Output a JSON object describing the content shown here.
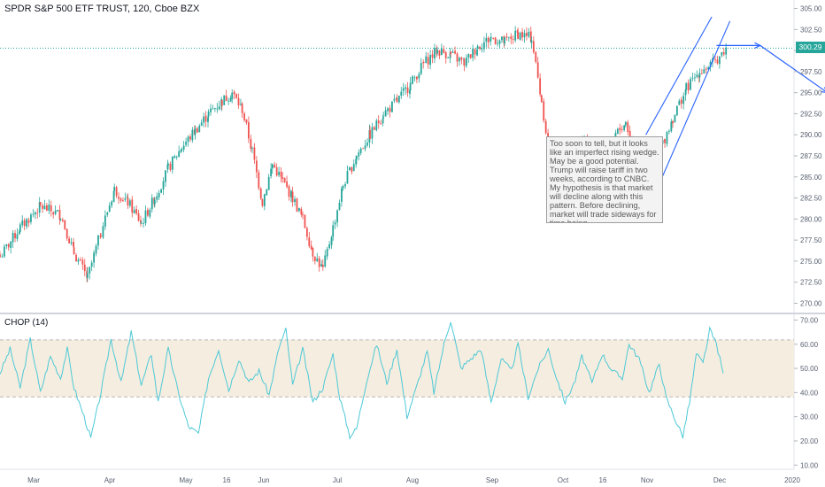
{
  "header": {
    "symbol_title": "SPDR S&P 500 ETF TRUST, 120, Cboe BZX"
  },
  "indicator": {
    "title": "CHOP (14)"
  },
  "annotation": {
    "text": "Too soon to tell, but it looks like an imperfect rising wedge. May be a good potential. Trump will raise tariff in two weeks, according to CNBC. My hypothesis is that market will decline along with this pattern. Before declining, market will trade sideways for time being."
  },
  "last_price": {
    "label": "300.29",
    "value": 300.29
  },
  "colors": {
    "up": "#26a69a",
    "down": "#ef5350",
    "chop_line": "#4dc9d6",
    "chop_band": "#f5ede0",
    "drawing": "#2962ff",
    "last_price_line": "#26a69a"
  },
  "chart_data": [
    {
      "type": "candlestick",
      "title": "SPDR S&P 500 ETF TRUST, 120, Cboe BZX",
      "ylim": [
        269,
        306
      ],
      "y_ticks": [
        "305.00",
        "302.50",
        "300.00",
        "297.50",
        "295.00",
        "292.50",
        "290.00",
        "287.50",
        "285.00",
        "282.50",
        "280.00",
        "277.50",
        "275.00",
        "272.50",
        "270.00"
      ],
      "x_ticks": [
        "Mar",
        "Apr",
        "May",
        "16",
        "Jun",
        "Jul",
        "Aug",
        "Sep",
        "Oct",
        "16",
        "Nov",
        "Dec",
        "2020"
      ],
      "close_path": [
        [
          0,
          275.5
        ],
        [
          3,
          279
        ],
        [
          6,
          281.5
        ],
        [
          9,
          280.5
        ],
        [
          11,
          276
        ],
        [
          13,
          273
        ],
        [
          15,
          278.5
        ],
        [
          17,
          283.5
        ],
        [
          19,
          282
        ],
        [
          21,
          279.5
        ],
        [
          23,
          282.5
        ],
        [
          25,
          286
        ],
        [
          27,
          288.5
        ],
        [
          29,
          290.5
        ],
        [
          31,
          292.5
        ],
        [
          33,
          294
        ],
        [
          34.5,
          295
        ],
        [
          36,
          293
        ],
        [
          37.5,
          288
        ],
        [
          39,
          282
        ],
        [
          40.5,
          286.5
        ],
        [
          42,
          284.5
        ],
        [
          43.5,
          282.5
        ],
        [
          45,
          280
        ],
        [
          46.5,
          276
        ],
        [
          48,
          274
        ],
        [
          49.5,
          279
        ],
        [
          51,
          284
        ],
        [
          53,
          287.5
        ],
        [
          55,
          290
        ],
        [
          57,
          292.5
        ],
        [
          59,
          294
        ],
        [
          61,
          296
        ],
        [
          63,
          298.5
        ],
        [
          65,
          300
        ],
        [
          67,
          299.5
        ],
        [
          69,
          298.5
        ],
        [
          71,
          300.5
        ],
        [
          73,
          301.5
        ],
        [
          75,
          301
        ],
        [
          77,
          302
        ],
        [
          79,
          301.5
        ],
        [
          80.5,
          294
        ],
        [
          82,
          286
        ],
        [
          83.5,
          284
        ],
        [
          85,
          287
        ],
        [
          87,
          289.5
        ],
        [
          88.5,
          285
        ],
        [
          90,
          284.5
        ],
        [
          91.5,
          290
        ],
        [
          93,
          291.5
        ],
        [
          94.5,
          287.5
        ],
        [
          95.5,
          285
        ],
        [
          97,
          287
        ],
        [
          98.5,
          289
        ],
        [
          100,
          292
        ],
        [
          102,
          295.5
        ],
        [
          104,
          297.5
        ],
        [
          106,
          298.5
        ],
        [
          108,
          300.3
        ]
      ],
      "trend_upper": [
        [
          96,
          290
        ],
        [
          105.8,
          304
        ]
      ],
      "trend_lower": [
        [
          96,
          280.5
        ],
        [
          108.5,
          303.5
        ]
      ],
      "projection": [
        [
          106.5,
          300.6
        ],
        [
          113,
          300.6
        ],
        [
          123,
          295
        ]
      ]
    },
    {
      "type": "line",
      "title": "CHOP (14)",
      "ylim": [
        9,
        72
      ],
      "y_ticks": [
        "70.00",
        "60.00",
        "50.00",
        "40.00",
        "30.00",
        "20.00",
        "10.00"
      ],
      "band": [
        38.2,
        61.8
      ],
      "points": [
        [
          0,
          48
        ],
        [
          1.5,
          58
        ],
        [
          3,
          42
        ],
        [
          4.5,
          62
        ],
        [
          6,
          40
        ],
        [
          7.5,
          55
        ],
        [
          9,
          46
        ],
        [
          10,
          58
        ],
        [
          11,
          42
        ],
        [
          12.5,
          30
        ],
        [
          13.5,
          21
        ],
        [
          15,
          40
        ],
        [
          16.5,
          62
        ],
        [
          18,
          44
        ],
        [
          19.5,
          65
        ],
        [
          21,
          43
        ],
        [
          22.5,
          56
        ],
        [
          23.5,
          36
        ],
        [
          25,
          58
        ],
        [
          26.5,
          40
        ],
        [
          28,
          26
        ],
        [
          29.5,
          23
        ],
        [
          31,
          46
        ],
        [
          32.5,
          58
        ],
        [
          34,
          41
        ],
        [
          35.5,
          54
        ],
        [
          37,
          44
        ],
        [
          38.5,
          49
        ],
        [
          40,
          39
        ],
        [
          41.5,
          59
        ],
        [
          42.5,
          66
        ],
        [
          43.5,
          43
        ],
        [
          45,
          58
        ],
        [
          46.5,
          36
        ],
        [
          48,
          42
        ],
        [
          49.5,
          56
        ],
        [
          50.5,
          38
        ],
        [
          52,
          22
        ],
        [
          53,
          25
        ],
        [
          54.5,
          45
        ],
        [
          56,
          60
        ],
        [
          57.5,
          44
        ],
        [
          59,
          58
        ],
        [
          60.5,
          30
        ],
        [
          62,
          43
        ],
        [
          63.5,
          57
        ],
        [
          64.5,
          40
        ],
        [
          66,
          60
        ],
        [
          67,
          70
        ],
        [
          68.5,
          50
        ],
        [
          70,
          54
        ],
        [
          71.5,
          58
        ],
        [
          73,
          36
        ],
        [
          74.5,
          54
        ],
        [
          76,
          49
        ],
        [
          77,
          60
        ],
        [
          78.5,
          38
        ],
        [
          80,
          50
        ],
        [
          81.5,
          58
        ],
        [
          82.5,
          48
        ],
        [
          84,
          36
        ],
        [
          85.5,
          45
        ],
        [
          86.5,
          55
        ],
        [
          88,
          44
        ],
        [
          89.5,
          56
        ],
        [
          91,
          49
        ],
        [
          92.5,
          46
        ],
        [
          93.5,
          60
        ],
        [
          95,
          54
        ],
        [
          96.5,
          40
        ],
        [
          98,
          52
        ],
        [
          99,
          38
        ],
        [
          100.5,
          28
        ],
        [
          101.5,
          22
        ],
        [
          102.5,
          36
        ],
        [
          103.5,
          56
        ],
        [
          104.5,
          52
        ],
        [
          105.5,
          66
        ],
        [
          106.5,
          60
        ],
        [
          107.5,
          48
        ]
      ]
    }
  ]
}
